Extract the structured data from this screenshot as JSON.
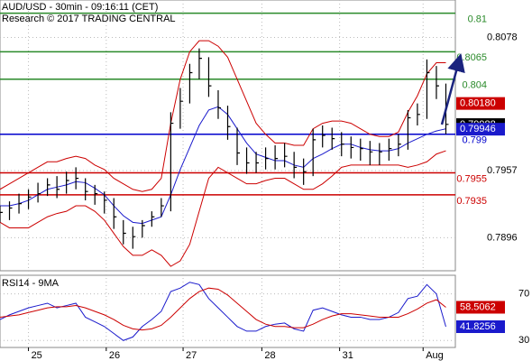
{
  "chart_data": [
    {
      "type": "ohlc",
      "title": "AUD/USD - 30min - 09:16:11 (CET)",
      "subtitle": "Research © 2017 TRADING CENTRAL",
      "xlim": [
        0,
        48
      ],
      "xticks": [
        {
          "value": 3,
          "label": "25"
        },
        {
          "value": 11.2,
          "label": "26"
        },
        {
          "value": 19.3,
          "label": "27"
        },
        {
          "value": 27.6,
          "label": "28"
        },
        {
          "value": 35.8,
          "label": "31"
        },
        {
          "value": 44.6,
          "label": "Aug"
        }
      ],
      "ylim": [
        0.7866,
        0.8112
      ],
      "yticks": [
        0.8078,
        0.7957,
        0.7896
      ],
      "color": "#000000",
      "high": [
        0.7925,
        0.7929,
        0.7936,
        0.794,
        0.7946,
        0.795,
        0.7952,
        0.7956,
        0.796,
        0.795,
        0.7944,
        0.7938,
        0.7932,
        0.7912,
        0.7906,
        0.7912,
        0.792,
        0.7932,
        0.801,
        0.8032,
        0.8054,
        0.8068,
        0.806,
        0.803,
        0.8016,
        0.7996,
        0.7978,
        0.7974,
        0.7978,
        0.798,
        0.7982,
        0.7974,
        0.7968,
        0.7995,
        0.7998,
        0.7996,
        0.7992,
        0.7988,
        0.7986,
        0.7984,
        0.7982,
        0.7986,
        0.799,
        0.8012,
        0.8018,
        0.8058,
        0.8052,
        0.8036
      ],
      "low": [
        0.791,
        0.7912,
        0.7918,
        0.7922,
        0.7928,
        0.7934,
        0.7932,
        0.7936,
        0.794,
        0.793,
        0.7926,
        0.7918,
        0.7904,
        0.789,
        0.7886,
        0.7896,
        0.7906,
        0.7915,
        0.792,
        0.7995,
        0.8018,
        0.804,
        0.8024,
        0.8004,
        0.7985,
        0.7962,
        0.7954,
        0.7955,
        0.7958,
        0.7958,
        0.796,
        0.795,
        0.7944,
        0.7952,
        0.7978,
        0.7976,
        0.797,
        0.7968,
        0.7966,
        0.7962,
        0.7962,
        0.7966,
        0.797,
        0.7976,
        0.7998,
        0.8004,
        0.8022,
        0.799
      ],
      "close": [
        0.7919,
        0.7923,
        0.7927,
        0.7933,
        0.7936,
        0.7944,
        0.794,
        0.7948,
        0.795,
        0.7938,
        0.7936,
        0.793,
        0.7915,
        0.79,
        0.7897,
        0.7907,
        0.7915,
        0.7925,
        0.8,
        0.802,
        0.8046,
        0.8059,
        0.8034,
        0.8014,
        0.7997,
        0.7973,
        0.7964,
        0.7964,
        0.7968,
        0.7968,
        0.797,
        0.796,
        0.7956,
        0.7985,
        0.7989,
        0.7986,
        0.7981,
        0.7978,
        0.7977,
        0.7974,
        0.7974,
        0.7977,
        0.7981,
        0.8005,
        0.8008,
        0.8046,
        0.8034,
        0.7999
      ],
      "bands": [
        {
          "color": "#cc0000",
          "values": [
            0.794,
            0.7945,
            0.795,
            0.7955,
            0.796,
            0.7965,
            0.7965,
            0.7968,
            0.797,
            0.7968,
            0.7962,
            0.7958,
            0.795,
            0.7945,
            0.794,
            0.7938,
            0.794,
            0.795,
            0.8,
            0.804,
            0.8065,
            0.8075,
            0.8075,
            0.807,
            0.806,
            0.804,
            0.802,
            0.8,
            0.799,
            0.7982,
            0.7982,
            0.798,
            0.798,
            0.7995,
            0.8,
            0.8002,
            0.8002,
            0.8,
            0.7995,
            0.799,
            0.7988,
            0.7988,
            0.7992,
            0.801,
            0.8025,
            0.8045,
            0.8055,
            0.8055
          ]
        },
        {
          "color": "#cc0000",
          "values": [
            0.791,
            0.7905,
            0.7905,
            0.7905,
            0.791,
            0.7915,
            0.7918,
            0.792,
            0.7925,
            0.7925,
            0.792,
            0.7912,
            0.79,
            0.7888,
            0.788,
            0.788,
            0.7885,
            0.788,
            0.787,
            0.7875,
            0.789,
            0.792,
            0.795,
            0.796,
            0.7955,
            0.795,
            0.7945,
            0.7945,
            0.7948,
            0.795,
            0.795,
            0.7945,
            0.794,
            0.794,
            0.7945,
            0.7952,
            0.796,
            0.7962,
            0.7962,
            0.7962,
            0.7962,
            0.7962,
            0.7962,
            0.796,
            0.7962,
            0.7965,
            0.7972,
            0.7975
          ]
        },
        {
          "color": "#1a1acc",
          "values": [
            0.7925,
            0.7925,
            0.7927,
            0.793,
            0.7935,
            0.794,
            0.7942,
            0.7944,
            0.7947,
            0.7946,
            0.7941,
            0.7935,
            0.7925,
            0.7916,
            0.791,
            0.7909,
            0.7912,
            0.7915,
            0.7935,
            0.7958,
            0.7978,
            0.7998,
            0.8012,
            0.8015,
            0.8008,
            0.7995,
            0.7982,
            0.7972,
            0.7969,
            0.7966,
            0.7966,
            0.7962,
            0.796,
            0.7968,
            0.7972,
            0.7977,
            0.7981,
            0.7981,
            0.7978,
            0.7976,
            0.7975,
            0.7975,
            0.7977,
            0.7982,
            0.7986,
            0.799,
            0.7993,
            0.7995
          ]
        }
      ],
      "levels": [
        {
          "value": 0.81,
          "color": "#2a8a2a"
        },
        {
          "value": 0.8065,
          "color": "#2a8a2a"
        },
        {
          "value": 0.804,
          "color": "#2a8a2a"
        },
        {
          "value": 0.799,
          "color": "#0000cc"
        },
        {
          "value": 0.7955,
          "color": "#cc0000"
        },
        {
          "value": 0.7935,
          "color": "#cc0000"
        }
      ],
      "price_boxes": [
        {
          "value": 0.8018,
          "label": "0.80180",
          "color": "#cc0000"
        },
        {
          "value": 0.79988,
          "color": "#000000"
        },
        {
          "value": 0.79946,
          "color": "#1a1acc"
        }
      ]
    },
    {
      "type": "line",
      "title": "RSI14 - 9MA",
      "xlim": [
        0,
        48
      ],
      "ylim": [
        24,
        86
      ],
      "yticks": [
        70,
        30
      ],
      "series": [
        {
          "color": "#1a1acc",
          "values": [
            48,
            52,
            55,
            58,
            60,
            62,
            58,
            60,
            62,
            50,
            46,
            42,
            36,
            30,
            33,
            42,
            48,
            55,
            72,
            75,
            80,
            78,
            66,
            58,
            50,
            42,
            38,
            38,
            42,
            44,
            45,
            40,
            38,
            56,
            58,
            55,
            52,
            50,
            50,
            48,
            48,
            50,
            54,
            66,
            68,
            78,
            70,
            41.8256
          ]
        },
        {
          "color": "#cc0000",
          "values": [
            50,
            51,
            52,
            54,
            56,
            58,
            59,
            59,
            60,
            58,
            55,
            52,
            48,
            43,
            40,
            39,
            40,
            43,
            50,
            58,
            66,
            72,
            75,
            74,
            69,
            62,
            55,
            48,
            44,
            42,
            42,
            41,
            41,
            44,
            48,
            51,
            53,
            53,
            52,
            51,
            50,
            50,
            50,
            53,
            57,
            62,
            65,
            58.5062
          ]
        }
      ],
      "boxes": [
        {
          "value": 58.5062,
          "color": "#cc0000"
        },
        {
          "value": 41.8256,
          "color": "#1a1acc"
        }
      ]
    }
  ]
}
